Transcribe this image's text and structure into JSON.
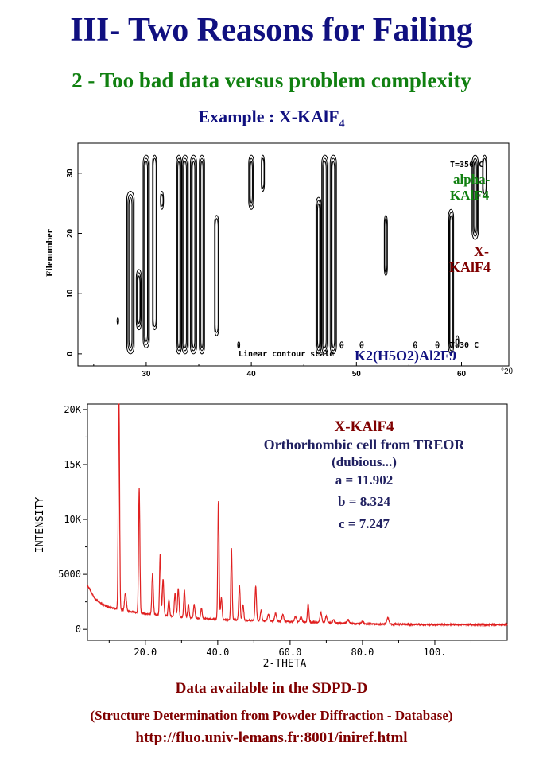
{
  "slide": {
    "title": "III- Two Reasons for Failing",
    "subtitle": "2 - Too bad data versus problem complexity",
    "example_prefix": "Example : X-KAlF",
    "example_sub": "4",
    "footer_line1": "Data available in the SDPD-D",
    "footer_line2": "(Structure Determination from Powder Diffraction - Database)",
    "footer_line3": "http://fluo.univ-lemans.fr:8001/iniref.html"
  },
  "chart_data": [
    {
      "type": "heatmap",
      "subtype": "contour",
      "ylabel": "Filenumber",
      "xlabel": "",
      "x_axis_end_label": "°2θ",
      "xlim": [
        23.5,
        64.5
      ],
      "ylim": [
        -2,
        35
      ],
      "x_ticks": [
        30,
        40,
        50,
        60
      ],
      "y_ticks": [
        0,
        10,
        20,
        30
      ],
      "annotations": {
        "top_temp": "T=350 C",
        "bottom_temp": "T=30 C",
        "scale_note": "Linear contour scale",
        "phase_alpha_1": "alpha-",
        "phase_alpha_2": "KAlF4",
        "phase_x_1": "X-",
        "phase_x_2": "KAlF4",
        "phase_k2": "K2(H5O2)Al2F9"
      },
      "colors": {
        "alpha": "#108010",
        "x": "#800000",
        "k2": "#101080",
        "contour": "#000000"
      },
      "peaks": [
        {
          "x": 27.3,
          "f0": 5,
          "f1": 6,
          "w": 0.15
        },
        {
          "x": 28.5,
          "f0": 0,
          "f1": 27,
          "w": 0.7
        },
        {
          "x": 29.3,
          "f0": 4,
          "f1": 14,
          "w": 0.5
        },
        {
          "x": 30.0,
          "f0": 1,
          "f1": 33,
          "w": 0.6
        },
        {
          "x": 30.8,
          "f0": 4,
          "f1": 33,
          "w": 0.4
        },
        {
          "x": 31.5,
          "f0": 24,
          "f1": 27,
          "w": 0.3
        },
        {
          "x": 33.1,
          "f0": 0,
          "f1": 33,
          "w": 0.5
        },
        {
          "x": 33.7,
          "f0": 0,
          "f1": 33,
          "w": 0.6
        },
        {
          "x": 34.5,
          "f0": 0,
          "f1": 33,
          "w": 0.6
        },
        {
          "x": 35.3,
          "f0": 0,
          "f1": 33,
          "w": 0.5
        },
        {
          "x": 36.7,
          "f0": 3,
          "f1": 23,
          "w": 0.4
        },
        {
          "x": 38.8,
          "f0": 1,
          "f1": 2,
          "w": 0.2
        },
        {
          "x": 40.0,
          "f0": 24,
          "f1": 33,
          "w": 0.5
        },
        {
          "x": 41.1,
          "f0": 27,
          "f1": 33,
          "w": 0.3
        },
        {
          "x": 46.4,
          "f0": 0,
          "f1": 26,
          "w": 0.5
        },
        {
          "x": 47.0,
          "f0": 0,
          "f1": 33,
          "w": 0.6
        },
        {
          "x": 47.8,
          "f0": 0,
          "f1": 33,
          "w": 0.6
        },
        {
          "x": 48.6,
          "f0": 1,
          "f1": 2,
          "w": 0.3
        },
        {
          "x": 50.5,
          "f0": 1,
          "f1": 2,
          "w": 0.3
        },
        {
          "x": 52.8,
          "f0": 13,
          "f1": 23,
          "w": 0.3
        },
        {
          "x": 55.6,
          "f0": 1,
          "f1": 2,
          "w": 0.3
        },
        {
          "x": 57.7,
          "f0": 1,
          "f1": 2,
          "w": 0.3
        },
        {
          "x": 59.0,
          "f0": 0,
          "f1": 24,
          "w": 0.5
        },
        {
          "x": 59.6,
          "f0": 1,
          "f1": 3,
          "w": 0.3
        },
        {
          "x": 61.3,
          "f0": 19,
          "f1": 33,
          "w": 0.6
        },
        {
          "x": 62.2,
          "f0": 26,
          "f1": 33,
          "w": 0.4
        }
      ]
    },
    {
      "type": "line",
      "xlabel": "2-THETA",
      "ylabel": "INTENSITY",
      "xlim": [
        4,
        120
      ],
      "ylim": [
        -1000,
        20500
      ],
      "x_ticks": [
        20,
        40,
        60,
        80,
        100
      ],
      "x_tick_labels": [
        "20.0",
        "40.0",
        "60.0",
        "80.0",
        "100."
      ],
      "y_ticks": [
        0,
        5000,
        10000,
        15000,
        20000
      ],
      "y_tick_labels": [
        "0",
        "5000",
        "10K",
        "15K",
        "20K"
      ],
      "line_color": "#e02020",
      "background": [
        [
          4,
          4000
        ],
        [
          6,
          2800
        ],
        [
          8,
          2300
        ],
        [
          10,
          2000
        ],
        [
          14,
          1700
        ],
        [
          20,
          1400
        ],
        [
          30,
          1100
        ],
        [
          40,
          900
        ],
        [
          50,
          800
        ],
        [
          60,
          700
        ],
        [
          70,
          600
        ],
        [
          80,
          500
        ],
        [
          90,
          450
        ],
        [
          100,
          430
        ],
        [
          120,
          420
        ]
      ],
      "peaks": [
        {
          "x": 12.7,
          "h": 19500,
          "w": 0.18
        },
        {
          "x": 14.5,
          "h": 1600,
          "w": 0.25
        },
        {
          "x": 18.3,
          "h": 11400,
          "w": 0.18
        },
        {
          "x": 22.0,
          "h": 3800,
          "w": 0.2
        },
        {
          "x": 24.1,
          "h": 5600,
          "w": 0.18
        },
        {
          "x": 24.9,
          "h": 3300,
          "w": 0.2
        },
        {
          "x": 26.5,
          "h": 1500,
          "w": 0.2
        },
        {
          "x": 28.2,
          "h": 2100,
          "w": 0.2
        },
        {
          "x": 29.1,
          "h": 2600,
          "w": 0.2
        },
        {
          "x": 30.8,
          "h": 2500,
          "w": 0.2
        },
        {
          "x": 31.9,
          "h": 1200,
          "w": 0.2
        },
        {
          "x": 33.5,
          "h": 1200,
          "w": 0.2
        },
        {
          "x": 35.5,
          "h": 900,
          "w": 0.2
        },
        {
          "x": 40.2,
          "h": 10800,
          "w": 0.18
        },
        {
          "x": 41.0,
          "h": 2000,
          "w": 0.2
        },
        {
          "x": 43.8,
          "h": 6500,
          "w": 0.18
        },
        {
          "x": 46.0,
          "h": 3200,
          "w": 0.2
        },
        {
          "x": 47.0,
          "h": 1400,
          "w": 0.2
        },
        {
          "x": 50.5,
          "h": 3100,
          "w": 0.2
        },
        {
          "x": 52.0,
          "h": 1000,
          "w": 0.2
        },
        {
          "x": 54.0,
          "h": 600,
          "w": 0.25
        },
        {
          "x": 56.0,
          "h": 700,
          "w": 0.25
        },
        {
          "x": 58.0,
          "h": 600,
          "w": 0.25
        },
        {
          "x": 61.5,
          "h": 500,
          "w": 0.25
        },
        {
          "x": 63.0,
          "h": 500,
          "w": 0.25
        },
        {
          "x": 65.0,
          "h": 1700,
          "w": 0.2
        },
        {
          "x": 68.5,
          "h": 900,
          "w": 0.25
        },
        {
          "x": 70.0,
          "h": 600,
          "w": 0.25
        },
        {
          "x": 72.0,
          "h": 300,
          "w": 0.25
        },
        {
          "x": 76.0,
          "h": 300,
          "w": 0.3
        },
        {
          "x": 80.0,
          "h": 250,
          "w": 0.3
        },
        {
          "x": 87.0,
          "h": 600,
          "w": 0.3
        }
      ],
      "annotations": {
        "phase": "X-KAlF4",
        "cell": "Orthorhombic cell from TREOR",
        "note": "(dubious...)",
        "a": "a = 11.902",
        "b": "b = 8.324",
        "c": "c = 7.247"
      },
      "colors": {
        "phase": "#800000",
        "text": "#202060"
      }
    }
  ]
}
